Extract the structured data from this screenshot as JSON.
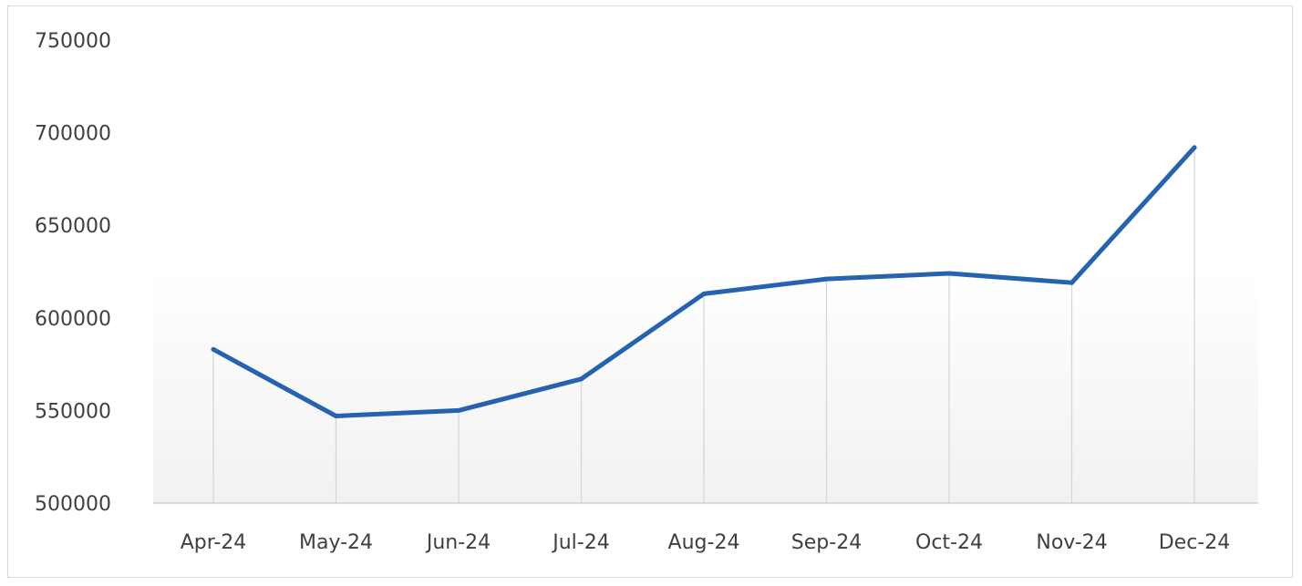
{
  "chart_data": {
    "type": "line",
    "categories": [
      "Apr-24",
      "May-24",
      "Jun-24",
      "Jul-24",
      "Aug-24",
      "Sep-24",
      "Oct-24",
      "Nov-24",
      "Dec-24"
    ],
    "series": [
      {
        "values": [
          583000,
          547000,
          550000,
          567000,
          613000,
          621000,
          624000,
          619000,
          692000
        ]
      }
    ],
    "yticks": [
      "750000",
      "700000",
      "650000",
      "600000",
      "550000",
      "500000"
    ],
    "ylim": [
      500000,
      750000
    ],
    "title": "",
    "xlabel": "",
    "ylabel": "",
    "grid": "vertical drop lines",
    "legend": "none",
    "line_color": "#2563b0"
  }
}
